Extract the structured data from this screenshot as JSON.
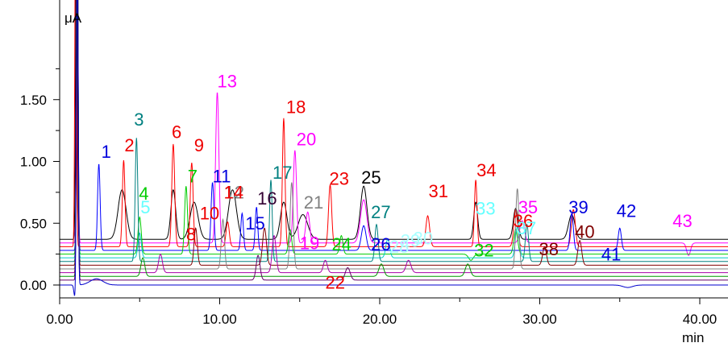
{
  "chart_data": {
    "type": "line",
    "title": "",
    "ylabel": "μA",
    "xlabel": "min",
    "xlim": [
      0,
      42
    ],
    "ylim": [
      -0.1,
      2.0
    ],
    "x_ticks": [
      {
        "value": 0,
        "label": "0.00"
      },
      {
        "value": 10,
        "label": "10.00"
      },
      {
        "value": 20,
        "label": "20.00"
      },
      {
        "value": 30,
        "label": "30.00"
      },
      {
        "value": 40,
        "label": "40.00"
      }
    ],
    "y_ticks": [
      {
        "value": 0.0,
        "label": "0.00"
      },
      {
        "value": 0.5,
        "label": "0.50"
      },
      {
        "value": 1.0,
        "label": "1.00"
      },
      {
        "value": 1.5,
        "label": "1.50"
      }
    ],
    "series": [
      {
        "color": "#000000",
        "baseline": 0.37,
        "scale": 1.0,
        "peaks": [
          [
            1.05,
            3.0,
            0.05
          ],
          [
            3.9,
            0.4,
            0.25
          ],
          [
            7.1,
            0.4,
            0.15
          ],
          [
            8.4,
            0.3,
            0.25
          ],
          [
            10.8,
            0.4,
            0.25
          ],
          [
            14.0,
            0.3,
            0.2
          ],
          [
            15.2,
            0.2,
            0.3
          ],
          [
            19.0,
            0.43,
            0.2
          ],
          [
            26.0,
            0.3,
            0.12
          ],
          [
            28.5,
            0.25,
            0.15
          ],
          [
            32.0,
            0.2,
            0.2
          ]
        ]
      },
      {
        "color": "#ff00ff",
        "baseline": 0.34,
        "scale": 1.0,
        "peaks": [
          [
            1.1,
            3.0,
            0.05
          ],
          [
            9.85,
            1.22,
            0.1
          ],
          [
            14.7,
            0.75,
            0.1
          ],
          [
            15.5,
            0.25,
            0.12
          ],
          [
            19.0,
            0.35,
            0.2
          ],
          [
            28.9,
            0.18,
            0.15
          ],
          [
            39.3,
            -0.1,
            0.12
          ]
        ]
      },
      {
        "color": "#ff0000",
        "baseline": 0.31,
        "scale": 1.0,
        "peaks": [
          [
            1.0,
            3.0,
            0.05
          ],
          [
            4.0,
            0.7,
            0.08
          ],
          [
            7.1,
            0.83,
            0.09
          ],
          [
            8.25,
            0.68,
            0.09
          ],
          [
            10.5,
            0.2,
            0.1
          ],
          [
            14.0,
            1.04,
            0.08
          ],
          [
            16.9,
            0.5,
            0.1
          ],
          [
            23.0,
            0.25,
            0.12
          ],
          [
            26.0,
            0.54,
            0.08
          ],
          [
            28.5,
            0.3,
            0.12
          ],
          [
            32.1,
            0.3,
            0.12
          ]
        ]
      },
      {
        "color": "#0000ff",
        "baseline": 0.28,
        "scale": 1.0,
        "peaks": [
          [
            1.1,
            3.0,
            0.05
          ],
          [
            2.45,
            0.7,
            0.08
          ],
          [
            9.55,
            0.55,
            0.09
          ],
          [
            11.4,
            0.3,
            0.08
          ],
          [
            12.3,
            0.35,
            0.08
          ],
          [
            19.0,
            0.2,
            0.15
          ],
          [
            32.0,
            0.3,
            0.1
          ],
          [
            35.0,
            0.18,
            0.1
          ]
        ]
      },
      {
        "color": "#00cc00",
        "baseline": 0.25,
        "scale": 1.0,
        "peaks": [
          [
            1.1,
            3.0,
            0.05
          ],
          [
            5.0,
            0.3,
            0.1
          ],
          [
            7.9,
            0.55,
            0.09
          ],
          [
            14.4,
            0.2,
            0.1
          ],
          [
            17.6,
            0.15,
            0.1
          ],
          [
            25.7,
            -0.05,
            0.15
          ],
          [
            28.5,
            0.2,
            0.12
          ]
        ]
      },
      {
        "color": "#00cccc",
        "baseline": 0.22,
        "scale": 1.0,
        "peaks": [
          [
            1.1,
            3.0,
            0.05
          ],
          [
            5.0,
            0.2,
            0.1
          ],
          [
            20.5,
            0.15,
            0.12
          ],
          [
            28.6,
            0.25,
            0.12
          ]
        ]
      },
      {
        "color": "#008080",
        "baseline": 0.19,
        "scale": 1.0,
        "peaks": [
          [
            1.1,
            3.0,
            0.05
          ],
          [
            4.8,
            1.0,
            0.08
          ],
          [
            13.2,
            0.66,
            0.08
          ],
          [
            19.8,
            0.3,
            0.1
          ],
          [
            29.2,
            0.3,
            0.1
          ]
        ]
      },
      {
        "color": "#800000",
        "baseline": 0.16,
        "scale": 1.0,
        "peaks": [
          [
            1.1,
            3.0,
            0.05
          ],
          [
            8.5,
            0.3,
            0.1
          ],
          [
            12.8,
            0.3,
            0.12
          ],
          [
            30.3,
            0.15,
            0.12
          ],
          [
            32.5,
            0.2,
            0.12
          ]
        ]
      },
      {
        "color": "#808080",
        "baseline": 0.13,
        "scale": 1.0,
        "peaks": [
          [
            1.1,
            3.0,
            0.05
          ],
          [
            10.2,
            0.4,
            0.1
          ],
          [
            14.5,
            0.7,
            0.1
          ],
          [
            28.6,
            0.65,
            0.1
          ]
        ]
      },
      {
        "color": "#aa00aa",
        "baseline": 0.1,
        "scale": 1.0,
        "peaks": [
          [
            1.1,
            3.0,
            0.05
          ],
          [
            6.3,
            0.15,
            0.12
          ],
          [
            13.4,
            0.3,
            0.12
          ],
          [
            16.6,
            0.1,
            0.12
          ],
          [
            21.8,
            0.1,
            0.15
          ]
        ]
      },
      {
        "color": "#009900",
        "baseline": 0.07,
        "scale": 1.0,
        "peaks": [
          [
            1.1,
            3.0,
            0.05
          ],
          [
            5.2,
            0.15,
            0.12
          ],
          [
            20.1,
            0.1,
            0.15
          ],
          [
            25.5,
            0.1,
            0.15
          ]
        ]
      },
      {
        "color": "#660066",
        "baseline": 0.04,
        "scale": 1.0,
        "peaks": [
          [
            1.1,
            3.0,
            0.05
          ],
          [
            12.4,
            0.2,
            0.12
          ],
          [
            18.0,
            0.1,
            0.15
          ]
        ]
      },
      {
        "color": "#0000cc",
        "baseline": 0.0,
        "scale": 1.0,
        "peaks": [
          [
            0.95,
            -0.1,
            0.06
          ],
          [
            1.1,
            3.0,
            0.05
          ],
          [
            2.3,
            0.05,
            0.4
          ],
          [
            35.5,
            -0.02,
            0.3
          ]
        ]
      }
    ],
    "peak_labels": [
      {
        "text": "1",
        "x": 2.6,
        "y": 1.03,
        "color": "#0000dd"
      },
      {
        "text": "2",
        "x": 4.05,
        "y": 1.08,
        "color": "#ee0000"
      },
      {
        "text": "3",
        "x": 4.65,
        "y": 1.29,
        "color": "#008080"
      },
      {
        "text": "4",
        "x": 4.95,
        "y": 0.69,
        "color": "#00cc00"
      },
      {
        "text": "5",
        "x": 5.05,
        "y": 0.58,
        "color": "#66ffff"
      },
      {
        "text": "6",
        "x": 7.0,
        "y": 1.19,
        "color": "#ee0000"
      },
      {
        "text": "7",
        "x": 8.0,
        "y": 0.83,
        "color": "#00cc00"
      },
      {
        "text": "8",
        "x": 7.9,
        "y": 0.36,
        "color": "#ee0000"
      },
      {
        "text": "9",
        "x": 8.4,
        "y": 1.08,
        "color": "#ee0000"
      },
      {
        "text": "10",
        "x": 8.75,
        "y": 0.53,
        "color": "#ee0000"
      },
      {
        "text": "11",
        "x": 9.55,
        "y": 0.83,
        "color": "#0000dd"
      },
      {
        "text": "12",
        "x": 10.3,
        "y": 0.7,
        "color": "#808080"
      },
      {
        "text": "13",
        "x": 9.85,
        "y": 1.6,
        "color": "#ff00ff"
      },
      {
        "text": "14",
        "x": 10.25,
        "y": 0.7,
        "color": "#ee0000"
      },
      {
        "text": "15",
        "x": 11.6,
        "y": 0.45,
        "color": "#0000dd"
      },
      {
        "text": "16",
        "x": 12.35,
        "y": 0.65,
        "color": "#330033"
      },
      {
        "text": "17",
        "x": 13.3,
        "y": 0.86,
        "color": "#008080"
      },
      {
        "text": "18",
        "x": 14.15,
        "y": 1.39,
        "color": "#ee0000"
      },
      {
        "text": "19",
        "x": 15.0,
        "y": 0.29,
        "color": "#ff00ff"
      },
      {
        "text": "20",
        "x": 14.8,
        "y": 1.13,
        "color": "#ff00ff"
      },
      {
        "text": "21",
        "x": 15.25,
        "y": 0.62,
        "color": "#808080"
      },
      {
        "text": "22",
        "x": 16.6,
        "y": -0.03,
        "color": "#ee0000"
      },
      {
        "text": "23",
        "x": 16.85,
        "y": 0.81,
        "color": "#ee0000"
      },
      {
        "text": "24",
        "x": 17.0,
        "y": 0.28,
        "color": "#00cc00"
      },
      {
        "text": "25",
        "x": 18.85,
        "y": 0.82,
        "color": "#000000"
      },
      {
        "text": "26",
        "x": 19.45,
        "y": 0.28,
        "color": "#0000dd"
      },
      {
        "text": "27",
        "x": 19.45,
        "y": 0.54,
        "color": "#008080"
      },
      {
        "text": "28",
        "x": 20.6,
        "y": 0.26,
        "color": "#aaffff"
      },
      {
        "text": "29",
        "x": 21.3,
        "y": 0.31,
        "color": "#aaffff"
      },
      {
        "text": "30",
        "x": 22.1,
        "y": 0.33,
        "color": "#aaffff"
      },
      {
        "text": "31",
        "x": 23.05,
        "y": 0.71,
        "color": "#ee0000"
      },
      {
        "text": "32",
        "x": 25.9,
        "y": 0.23,
        "color": "#00cc00"
      },
      {
        "text": "33",
        "x": 26.0,
        "y": 0.57,
        "color": "#66ffff"
      },
      {
        "text": "34",
        "x": 26.05,
        "y": 0.88,
        "color": "#ee0000"
      },
      {
        "text": "35",
        "x": 28.65,
        "y": 0.58,
        "color": "#ff00ff"
      },
      {
        "text": "36",
        "x": 28.35,
        "y": 0.47,
        "color": "#ee0000"
      },
      {
        "text": "37",
        "x": 28.55,
        "y": 0.41,
        "color": "#66ffff"
      },
      {
        "text": "38",
        "x": 29.95,
        "y": 0.24,
        "color": "#800000"
      },
      {
        "text": "39",
        "x": 31.8,
        "y": 0.58,
        "color": "#0000dd"
      },
      {
        "text": "40",
        "x": 32.2,
        "y": 0.38,
        "color": "#800000"
      },
      {
        "text": "41",
        "x": 33.85,
        "y": 0.2,
        "color": "#0000dd"
      },
      {
        "text": "42",
        "x": 34.8,
        "y": 0.55,
        "color": "#0000dd"
      },
      {
        "text": "43",
        "x": 38.3,
        "y": 0.47,
        "color": "#ff00ff"
      }
    ]
  }
}
